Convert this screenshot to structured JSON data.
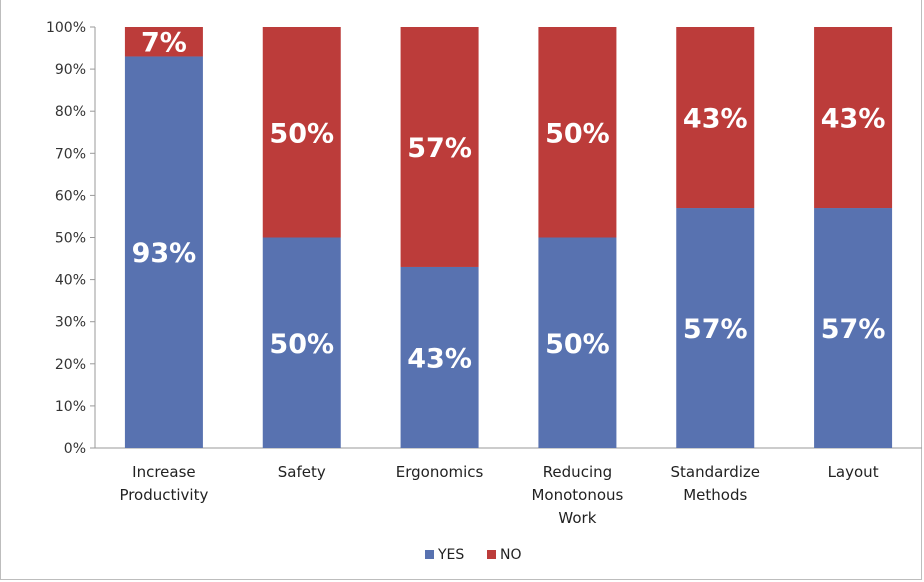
{
  "chart_data": {
    "type": "bar",
    "stacked": true,
    "percent": true,
    "categories": [
      "Increase Productivity",
      "Safety",
      "Ergonomics",
      "Reducing Monotonous Work",
      "Standardize Methods",
      "Layout"
    ],
    "series": [
      {
        "name": "YES",
        "values": [
          93,
          50,
          43,
          50,
          57,
          57
        ],
        "color": "#5872b0"
      },
      {
        "name": "NO",
        "values": [
          7,
          50,
          57,
          50,
          43,
          43
        ],
        "color": "#bc3c3a"
      }
    ],
    "data_labels": {
      "YES": [
        "93%",
        "50%",
        "43%",
        "50%",
        "57%",
        "57%"
      ],
      "NO": [
        "7%",
        "50%",
        "57%",
        "50%",
        "43%",
        "43%"
      ]
    },
    "yticks": [
      "0%",
      "10%",
      "20%",
      "30%",
      "40%",
      "50%",
      "60%",
      "70%",
      "80%",
      "90%",
      "100%"
    ],
    "ylim": [
      0,
      100
    ],
    "title": "",
    "xlabel": "",
    "ylabel": "",
    "grid": false,
    "legend": {
      "position": "bottom",
      "entries": [
        "YES",
        "NO"
      ]
    }
  }
}
